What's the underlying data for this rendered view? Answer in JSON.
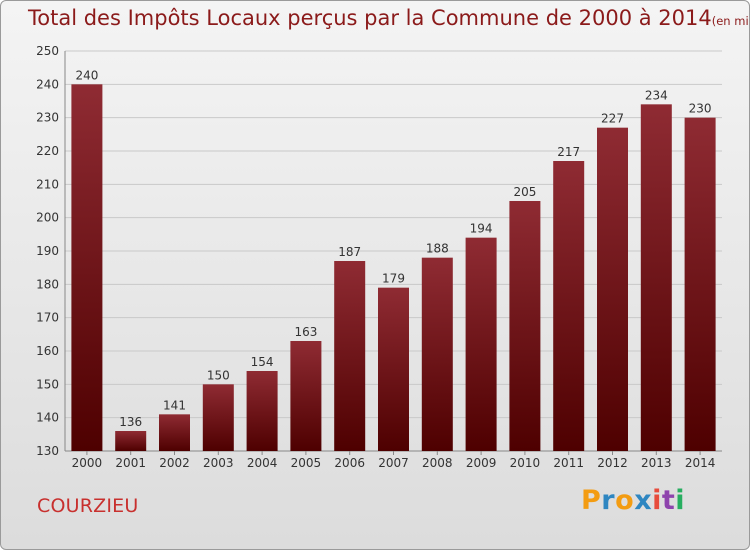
{
  "title": "Total des Impôts Locaux perçus par la Commune de 2000 à 2014",
  "subtitle": "(en milliers d'€)",
  "commune": "COURZIEU",
  "brand": {
    "logo_text": "Proxiti",
    "letters": [
      "P",
      "r",
      "o",
      "x",
      "i",
      "t",
      "i"
    ],
    "letter_colors": [
      "#f39c12",
      "#2e86c1",
      "#f39c12",
      "#2e86c1",
      "#e74c3c",
      "#8e44ad",
      "#27ae60"
    ]
  },
  "colors": {
    "bar_top": "#8f2b33",
    "bar_bottom": "#4e0000",
    "accent": "#8b1a1a",
    "commune": "#c8302e",
    "grid": "#c9c9c9"
  },
  "chart_data": {
    "type": "bar",
    "title": "Total des Impôts Locaux perçus par la Commune de 2000 à 2014",
    "subtitle": "(en milliers d'€)",
    "categories": [
      "2000",
      "2001",
      "2002",
      "2003",
      "2004",
      "2005",
      "2006",
      "2007",
      "2008",
      "2009",
      "2010",
      "2011",
      "2012",
      "2013",
      "2014"
    ],
    "values": [
      240,
      136,
      141,
      150,
      154,
      163,
      187,
      179,
      188,
      194,
      205,
      217,
      227,
      234,
      230
    ],
    "ylim": [
      130,
      250
    ],
    "yticks": [
      130,
      140,
      150,
      160,
      170,
      180,
      190,
      200,
      210,
      220,
      230,
      240,
      250
    ],
    "xlabel": "",
    "ylabel": "",
    "grid": true,
    "data_labels": true
  }
}
